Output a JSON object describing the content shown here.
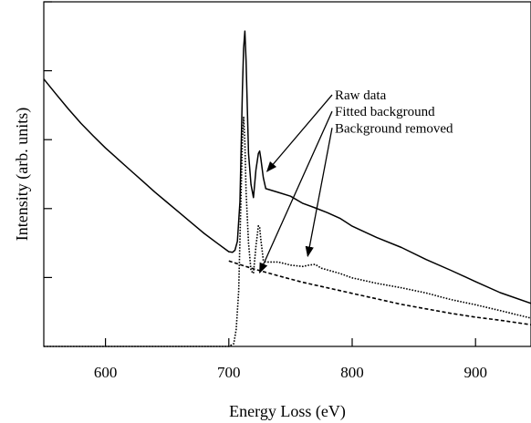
{
  "chart_data": {
    "type": "line",
    "xlabel": "Energy Loss (eV)",
    "ylabel": "Intensity (arb. units)",
    "xlim": [
      550,
      945
    ],
    "ylim": [
      0,
      1
    ],
    "x_ticks": [
      600,
      700,
      800,
      900
    ],
    "y_ticks_unlabeled": [
      0.2,
      0.4,
      0.6,
      0.8,
      1.0
    ],
    "series": [
      {
        "name": "Raw data",
        "style": "solid",
        "color": "#000000",
        "points": [
          [
            550,
            0.776
          ],
          [
            560,
            0.732
          ],
          [
            570,
            0.689
          ],
          [
            580,
            0.648
          ],
          [
            590,
            0.611
          ],
          [
            600,
            0.576
          ],
          [
            610,
            0.544
          ],
          [
            620,
            0.512
          ],
          [
            630,
            0.48
          ],
          [
            640,
            0.448
          ],
          [
            650,
            0.418
          ],
          [
            660,
            0.388
          ],
          [
            670,
            0.358
          ],
          [
            680,
            0.328
          ],
          [
            690,
            0.301
          ],
          [
            700,
            0.275
          ],
          [
            703,
            0.273
          ],
          [
            705,
            0.279
          ],
          [
            707,
            0.305
          ],
          [
            709,
            0.42
          ],
          [
            711,
            0.745
          ],
          [
            712,
            0.865
          ],
          [
            713,
            0.915
          ],
          [
            714,
            0.83
          ],
          [
            716,
            0.56
          ],
          [
            718,
            0.47
          ],
          [
            720,
            0.432
          ],
          [
            722,
            0.512
          ],
          [
            724,
            0.56
          ],
          [
            725,
            0.567
          ],
          [
            726,
            0.545
          ],
          [
            728,
            0.49
          ],
          [
            730,
            0.458
          ],
          [
            740,
            0.447
          ],
          [
            750,
            0.436
          ],
          [
            760,
            0.415
          ],
          [
            770,
            0.402
          ],
          [
            780,
            0.388
          ],
          [
            790,
            0.372
          ],
          [
            800,
            0.349
          ],
          [
            820,
            0.316
          ],
          [
            840,
            0.287
          ],
          [
            860,
            0.252
          ],
          [
            880,
            0.221
          ],
          [
            900,
            0.188
          ],
          [
            920,
            0.156
          ],
          [
            945,
            0.125
          ]
        ]
      },
      {
        "name": "Fitted background",
        "style": "dashed",
        "color": "#000000",
        "points": [
          [
            700,
            0.248
          ],
          [
            720,
            0.225
          ],
          [
            740,
            0.205
          ],
          [
            760,
            0.186
          ],
          [
            780,
            0.17
          ],
          [
            800,
            0.154
          ],
          [
            820,
            0.138
          ],
          [
            840,
            0.122
          ],
          [
            860,
            0.109
          ],
          [
            880,
            0.096
          ],
          [
            900,
            0.085
          ],
          [
            920,
            0.076
          ],
          [
            945,
            0.063
          ]
        ]
      },
      {
        "name": "Background removed",
        "style": "dotted",
        "color": "#000000",
        "points": [
          [
            550,
            0.0
          ],
          [
            600,
            0.0
          ],
          [
            650,
            0.0
          ],
          [
            690,
            0.0
          ],
          [
            700,
            0.0
          ],
          [
            704,
            0.008
          ],
          [
            706,
            0.05
          ],
          [
            708,
            0.16
          ],
          [
            710,
            0.45
          ],
          [
            711,
            0.6
          ],
          [
            712,
            0.665
          ],
          [
            713,
            0.59
          ],
          [
            714,
            0.45
          ],
          [
            716,
            0.3
          ],
          [
            718,
            0.22
          ],
          [
            720,
            0.212
          ],
          [
            722,
            0.29
          ],
          [
            724,
            0.35
          ],
          [
            725,
            0.345
          ],
          [
            726,
            0.31
          ],
          [
            728,
            0.25
          ],
          [
            730,
            0.245
          ],
          [
            740,
            0.245
          ],
          [
            750,
            0.236
          ],
          [
            760,
            0.232
          ],
          [
            765,
            0.236
          ],
          [
            770,
            0.238
          ],
          [
            775,
            0.227
          ],
          [
            780,
            0.222
          ],
          [
            790,
            0.212
          ],
          [
            800,
            0.199
          ],
          [
            820,
            0.183
          ],
          [
            840,
            0.17
          ],
          [
            860,
            0.155
          ],
          [
            880,
            0.136
          ],
          [
            900,
            0.121
          ],
          [
            920,
            0.104
          ],
          [
            945,
            0.082
          ]
        ]
      }
    ],
    "annotations": [
      {
        "label": "Raw data",
        "text_at": [
          786,
          0.73
        ],
        "arrow_to": [
          731,
          0.508
        ]
      },
      {
        "label": "Fitted background",
        "text_at": [
          786,
          0.682
        ],
        "arrow_to": [
          725,
          0.214
        ]
      },
      {
        "label": "Background removed",
        "text_at": [
          786,
          0.634
        ],
        "arrow_to": [
          764,
          0.262
        ]
      }
    ]
  }
}
